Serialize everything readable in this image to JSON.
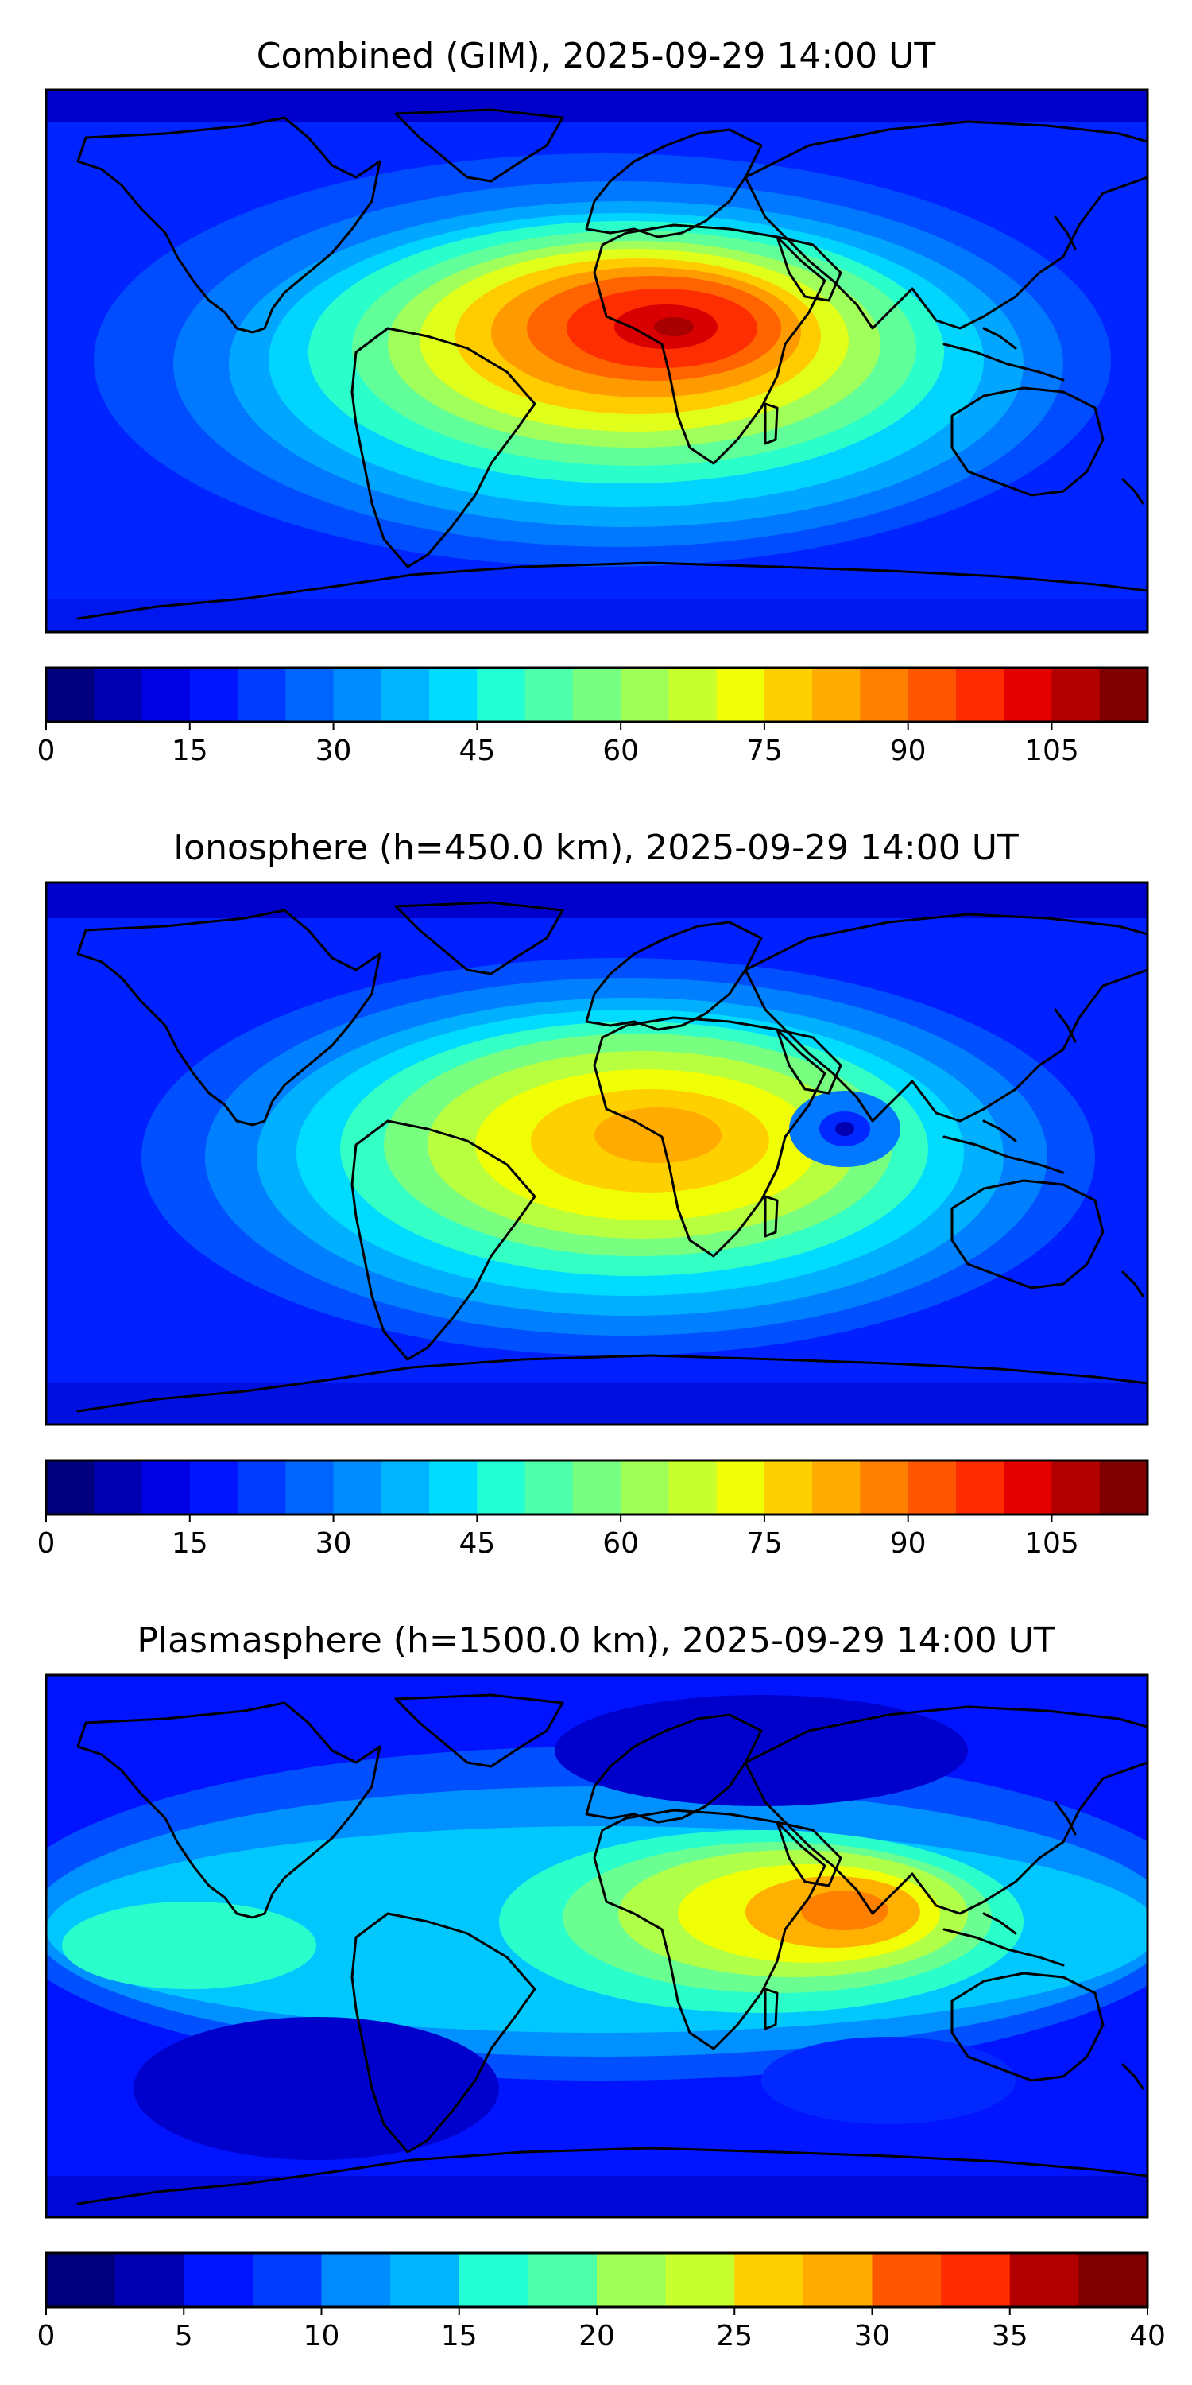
{
  "colors": {
    "jet": [
      "#00007f",
      "#0000b2",
      "#0000e5",
      "#0014ff",
      "#003cff",
      "#0064ff",
      "#008cff",
      "#00b4ff",
      "#00dcff",
      "#22ffd4",
      "#4dffaa",
      "#76ff80",
      "#9fff57",
      "#c8ff2e",
      "#f0ff06",
      "#ffd000",
      "#ffab00",
      "#ff7f00",
      "#ff5700",
      "#ff2c00",
      "#e50000",
      "#b20000",
      "#7f0000"
    ]
  },
  "panels": [
    {
      "title": "Combined (GIM), 2025-09-29 14:00 UT",
      "colorbar": {
        "min": 0,
        "max": 115,
        "step": 5,
        "ticks": [
          "0",
          "15",
          "30",
          "45",
          "60",
          "75",
          "90",
          "105"
        ],
        "tick_values": [
          0,
          15,
          30,
          45,
          60,
          75,
          90,
          105
        ]
      }
    },
    {
      "title": "Ionosphere  (h=450.0 km), 2025-09-29 14:00 UT",
      "colorbar": {
        "min": 0,
        "max": 115,
        "step": 5,
        "ticks": [
          "0",
          "15",
          "30",
          "45",
          "60",
          "75",
          "90",
          "105"
        ],
        "tick_values": [
          0,
          15,
          30,
          45,
          60,
          75,
          90,
          105
        ]
      }
    },
    {
      "title": "Plasmasphere (h=1500.0 km), 2025-09-29 14:00 UT",
      "colorbar": {
        "min": 0,
        "max": 40,
        "step": 2.5,
        "ticks": [
          "0",
          "5",
          "10",
          "15",
          "20",
          "25",
          "30",
          "35",
          "40"
        ],
        "tick_values": [
          0,
          5,
          10,
          15,
          20,
          25,
          30,
          35,
          40
        ]
      }
    }
  ]
}
